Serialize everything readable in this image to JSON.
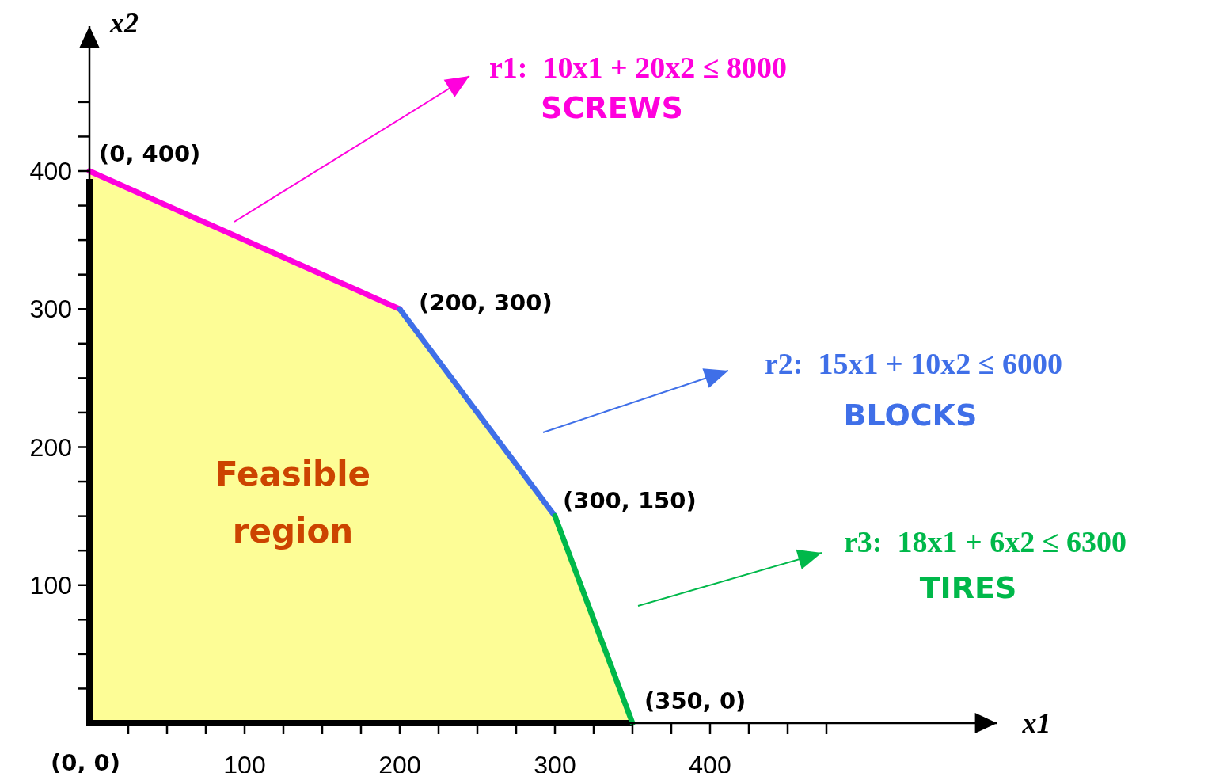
{
  "chart_data": {
    "type": "line",
    "legend": "right",
    "xlabel": "x1",
    "ylabel": "x2",
    "xlim": [
      0,
      585
    ],
    "ylim": [
      0,
      505
    ],
    "xticks": [
      {
        "value": 25,
        "label": null
      },
      {
        "value": 50,
        "label": null
      },
      {
        "value": 75,
        "label": null
      },
      100,
      {
        "value": 125,
        "label": null
      },
      {
        "value": 150,
        "label": null
      },
      {
        "value": 175,
        "label": null
      },
      200,
      {
        "value": 225,
        "label": null
      },
      {
        "value": 250,
        "label": null
      },
      {
        "value": 275,
        "label": null
      },
      300,
      {
        "value": 325,
        "label": null
      },
      {
        "value": 350,
        "label": null
      },
      {
        "value": 375,
        "label": null
      },
      400,
      {
        "value": 425,
        "label": null
      },
      {
        "value": 450,
        "label": null
      },
      {
        "value": 475,
        "label": null
      }
    ],
    "yticks": [
      {
        "value": 25,
        "label": null
      },
      {
        "value": 50,
        "label": null
      },
      {
        "value": 75,
        "label": null
      },
      100,
      {
        "value": 125,
        "label": null
      },
      {
        "value": 150,
        "label": null
      },
      {
        "value": 175,
        "label": null
      },
      200,
      {
        "value": 225,
        "label": null
      },
      {
        "value": 250,
        "label": null
      },
      {
        "value": 275,
        "label": null
      },
      300,
      {
        "value": 325,
        "label": null
      },
      {
        "value": 350,
        "label": null
      },
      {
        "value": 375,
        "label": null
      },
      400,
      {
        "value": 425,
        "label": null
      },
      {
        "value": 450,
        "label": null
      }
    ],
    "series": [
      {
        "type": "area",
        "color": "#fdfd96",
        "x": [
          0,
          200,
          300,
          350
        ],
        "values": [
          400,
          300,
          150,
          0
        ]
      },
      {
        "name": "r1:  10x1 + 20x2 ≤ 8000",
        "color": "#ff00dd",
        "x": [
          0,
          200
        ],
        "values": [
          400,
          300
        ]
      },
      {
        "name": "r2:  15x1 + 10x2 ≤ 6000",
        "color": "#3f6fe8",
        "x": [
          200,
          300
        ],
        "values": [
          300,
          150
        ]
      },
      {
        "name": "r3:  18x1 + 6x2 ≤ 6300",
        "color": "#00b84a",
        "x": [
          300,
          350
        ],
        "values": [
          150,
          0
        ]
      }
    ],
    "annotations": [
      {
        "text": "(0, 400)",
        "x": 0,
        "y": 400
      },
      {
        "text": "(200, 300)",
        "x": 200,
        "y": 300
      },
      {
        "text": "(300, 150)",
        "x": 300,
        "y": 150
      },
      {
        "text": "(350, 0)",
        "x": 350,
        "y": 0
      },
      {
        "text": "(0, 0)",
        "x": 0,
        "y": 0
      },
      "Feasible region",
      "SCREWS",
      "BLOCKS",
      "TIRES"
    ]
  }
}
